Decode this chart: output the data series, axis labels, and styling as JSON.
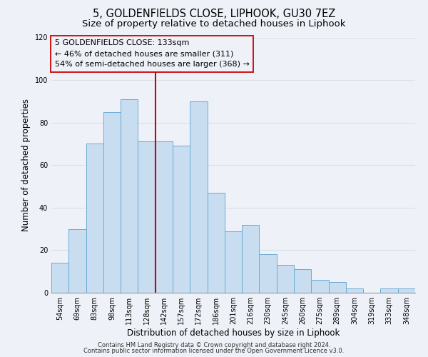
{
  "title": "5, GOLDENFIELDS CLOSE, LIPHOOK, GU30 7EZ",
  "subtitle": "Size of property relative to detached houses in Liphook",
  "xlabel": "Distribution of detached houses by size in Liphook",
  "ylabel": "Number of detached properties",
  "categories": [
    "54sqm",
    "69sqm",
    "83sqm",
    "98sqm",
    "113sqm",
    "128sqm",
    "142sqm",
    "157sqm",
    "172sqm",
    "186sqm",
    "201sqm",
    "216sqm",
    "230sqm",
    "245sqm",
    "260sqm",
    "275sqm",
    "289sqm",
    "304sqm",
    "319sqm",
    "333sqm",
    "348sqm"
  ],
  "values": [
    14,
    30,
    70,
    85,
    91,
    71,
    71,
    69,
    90,
    47,
    29,
    32,
    18,
    13,
    11,
    6,
    5,
    2,
    0,
    2,
    2
  ],
  "bar_color": "#c8ddf0",
  "bar_edgecolor": "#6aaad4",
  "vline_x": 5.5,
  "vline_color": "#cc0000",
  "ylim": [
    0,
    120
  ],
  "yticks": [
    0,
    20,
    40,
    60,
    80,
    100,
    120
  ],
  "annotation_line1": "5 GOLDENFIELDS CLOSE: 133sqm",
  "annotation_line2": "← 46% of detached houses are smaller (311)",
  "annotation_line3": "54% of semi-detached houses are larger (368) →",
  "footer_line1": "Contains HM Land Registry data © Crown copyright and database right 2024.",
  "footer_line2": "Contains public sector information licensed under the Open Government Licence v3.0.",
  "background_color": "#eef2f8",
  "grid_color": "#d8dfe8",
  "title_fontsize": 10.5,
  "subtitle_fontsize": 9.5,
  "tick_fontsize": 7,
  "ylabel_fontsize": 8.5,
  "xlabel_fontsize": 8.5,
  "annotation_fontsize": 8,
  "footer_fontsize": 6
}
